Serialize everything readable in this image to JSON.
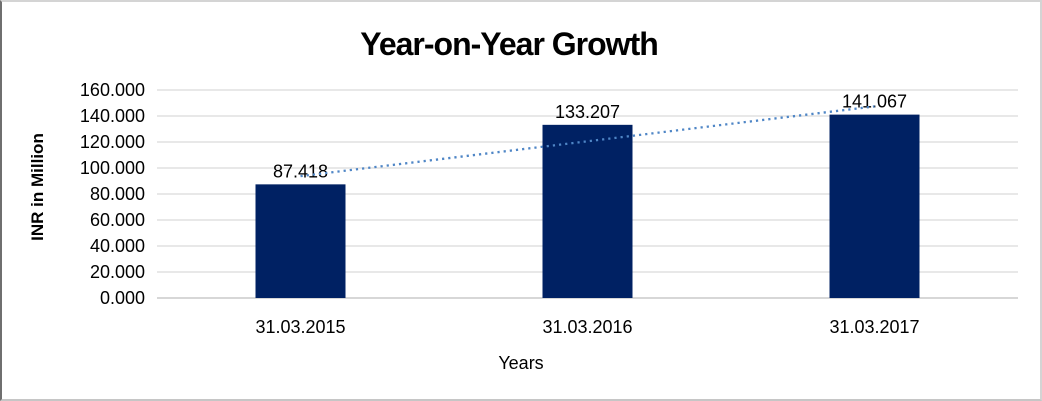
{
  "chart_data": {
    "type": "bar",
    "title": "Year-on-Year Growth",
    "xlabel": "Years",
    "ylabel": "INR in Million",
    "categories": [
      "31.03.2015",
      "31.03.2016",
      "31.03.2017"
    ],
    "values": [
      87.418,
      133.207,
      141.067
    ],
    "data_labels": [
      "87.418",
      "133.207",
      "141.067"
    ],
    "y_ticks": [
      "160.000",
      "140.000",
      "120.000",
      "100.000",
      "80.000",
      "60.000",
      "40.000",
      "20.000",
      "0.000"
    ],
    "ylim": [
      0,
      160
    ],
    "y_step": 20,
    "grid": true,
    "legend_position": "none",
    "trendline": {
      "type": "linear",
      "style": "dotted",
      "color": "#4F86C6"
    },
    "colors": {
      "bar": "#002163",
      "gridline": "#D9D9D9",
      "axis_line": "#BFBFBF",
      "text": "#000000"
    }
  }
}
